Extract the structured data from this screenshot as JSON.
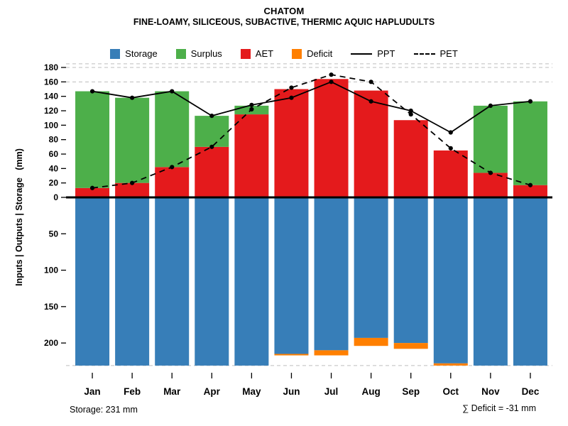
{
  "header": {
    "title": "CHATOM",
    "subtitle": "FINE-LOAMY, SILICEOUS, SUBACTIVE, THERMIC AQUIC HAPLUDULTS"
  },
  "legend": {
    "items": [
      {
        "label": "Storage",
        "swatch": "square",
        "color": "#377EB8"
      },
      {
        "label": "Surplus",
        "swatch": "square",
        "color": "#4DAF4A"
      },
      {
        "label": "AET",
        "swatch": "square",
        "color": "#E41A1C"
      },
      {
        "label": "Deficit",
        "swatch": "square",
        "color": "#FF7F00"
      },
      {
        "label": "PPT",
        "swatch": "line-solid",
        "color": "#000000"
      },
      {
        "label": "PET",
        "swatch": "line-dashed",
        "color": "#000000"
      }
    ]
  },
  "axis": {
    "ylabel": "Inputs | Outputs | Storage   (mm)"
  },
  "footer": {
    "storage_note": "Storage: 231 mm",
    "deficit_note": "∑ Deficit = -31 mm"
  },
  "chart_data": {
    "type": "bar",
    "title": "CHATOM",
    "subtitle": "FINE-LOAMY, SILICEOUS, SUBACTIVE, THERMIC AQUIC HAPLUDULTS",
    "categories": [
      "Jan",
      "Feb",
      "Mar",
      "Apr",
      "May",
      "Jun",
      "Jul",
      "Aug",
      "Sep",
      "Oct",
      "Nov",
      "Dec"
    ],
    "series": [
      {
        "name": "AET",
        "role": "bar-up-base",
        "color": "#E41A1C",
        "values": [
          13,
          20,
          42,
          70,
          115,
          150,
          164,
          148,
          107,
          65,
          34,
          17
        ]
      },
      {
        "name": "Surplus",
        "role": "bar-up-stack",
        "color": "#4DAF4A",
        "values": [
          134,
          118,
          105,
          43,
          12,
          0,
          0,
          0,
          0,
          0,
          93,
          116
        ]
      },
      {
        "name": "Storage",
        "role": "bar-down-base",
        "color": "#377EB8",
        "values": [
          231,
          231,
          231,
          231,
          231,
          215,
          210,
          193,
          200,
          228,
          231,
          231
        ]
      },
      {
        "name": "Deficit",
        "role": "bar-down-stack",
        "color": "#FF7F00",
        "values": [
          0,
          0,
          0,
          0,
          0,
          2,
          7,
          11,
          8,
          3,
          0,
          0
        ]
      },
      {
        "name": "PPT",
        "role": "line-solid",
        "color": "#000000",
        "values": [
          147,
          138,
          147,
          113,
          128,
          138,
          160,
          133,
          120,
          90,
          127,
          133
        ]
      },
      {
        "name": "PET",
        "role": "line-dashed",
        "color": "#000000",
        "values": [
          13,
          20,
          42,
          70,
          122,
          152,
          170,
          160,
          115,
          68,
          34,
          17
        ]
      }
    ],
    "upper_ylim": [
      0,
      180
    ],
    "lower_ylim": [
      0,
      235
    ],
    "upper_ticks": [
      0,
      20,
      40,
      60,
      80,
      100,
      120,
      140,
      160,
      180
    ],
    "lower_ticks": [
      50,
      100,
      150,
      200
    ],
    "gridlines_upper": [
      185,
      180,
      160
    ],
    "gridlines_lower": [
      231
    ],
    "grid_color": "#bdbdbd",
    "storage_capacity_mm": 231,
    "deficit_total_mm": -31,
    "legend_position": "top",
    "grid": "dashed-horizontal"
  }
}
